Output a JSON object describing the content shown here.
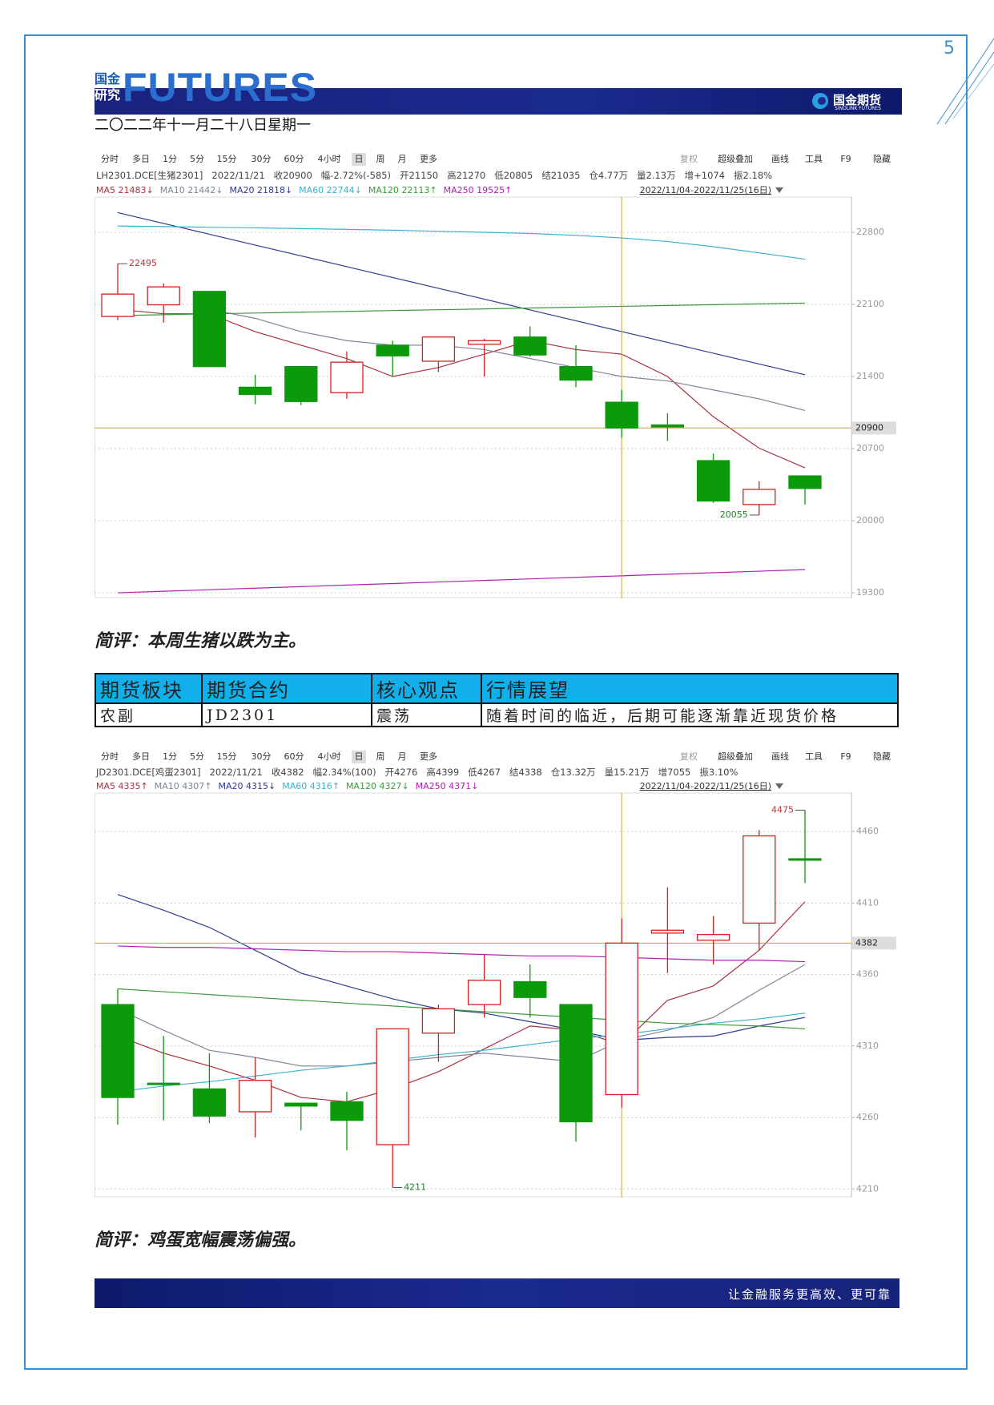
{
  "header": {
    "logo_top": "国金",
    "logo_bottom": "研究",
    "logo_word": "FUTURES",
    "brand": "国金期货",
    "brand_en": "SINOLINK FUTURES",
    "date": "二〇二二年十一月二十八日星期一",
    "page_number": 5
  },
  "comments": [
    "简评：本周生猪以跌为主。",
    "简评：鸡蛋宽幅震荡偏强。"
  ],
  "table": {
    "header": [
      "期货板块",
      "期货合约",
      "核心观点",
      "行情展望"
    ],
    "rows": [
      [
        "农副",
        "JD2301",
        "震荡",
        "随着时间的临近，后期可能逐渐靠近现货价格"
      ]
    ]
  },
  "footer": {
    "slogan": "让金融服务更高效、更可靠"
  },
  "chart_data": [
    {
      "type": "candlestick",
      "toolbar": [
        "分时",
        "多日",
        "1分",
        "5分",
        "15分",
        "30分",
        "60分",
        "4小时",
        "日",
        "周",
        "月",
        "更多"
      ],
      "toolbar_right": [
        "复权",
        "超级叠加",
        "画线",
        "工具",
        "F9",
        "隐藏"
      ],
      "info": [
        "LH2301.DCE[生猪2301]",
        "2022/11/21",
        "收20900",
        "幅-2.72%(-585)",
        "开21150",
        "高21270",
        "低20805",
        "结21035",
        "仓4.77万",
        "量2.13万",
        "增+1074",
        "振2.18%"
      ],
      "ma_legend": [
        "MA5 21483↓",
        "MA10 21442↓",
        "MA20 21818↓",
        "MA60 22744↓",
        "MA120 22113↑",
        "MA250 19525↑"
      ],
      "range": "2022/11/04-2022/11/25(16日)",
      "ylim": [
        19246,
        23142
      ],
      "yticks": [
        22800,
        22100,
        21400,
        20700,
        20000,
        19300
      ],
      "grid": true,
      "last_price": 20900,
      "high_label": 22495,
      "low_label": 20055,
      "up_color": "#d42020",
      "down_color": "#0a9a0a",
      "open": [
        21983,
        22096,
        22226,
        21296,
        21496,
        21243,
        21704,
        21548,
        21713,
        21783,
        21496,
        21150,
        20930,
        20583,
        20157,
        20435
      ],
      "high": [
        22495,
        22304,
        22226,
        21417,
        21496,
        21643,
        21748,
        21783,
        21765,
        21887,
        21704,
        21270,
        21043,
        20652,
        20383,
        20435
      ],
      "low": [
        21948,
        21922,
        21496,
        21130,
        21122,
        21183,
        21400,
        21443,
        21400,
        21591,
        21296,
        20805,
        20774,
        20174,
        20055,
        20157
      ],
      "close": [
        22200,
        22270,
        21496,
        21226,
        21157,
        21539,
        21600,
        21783,
        21748,
        21609,
        21365,
        20900,
        20910,
        20191,
        20304,
        20313
      ],
      "lines": [
        {
          "color": "#a8323e",
          "values": [
            22052,
            22009,
            22009,
            21835,
            21704,
            21574,
            21400,
            21487,
            21617,
            21748,
            21661,
            21617,
            21400,
            21009,
            20704,
            20513
          ]
        },
        {
          "color": "#7a8595",
          "values": [
            null,
            null,
            22052,
            21965,
            21835,
            21748,
            21704,
            21704,
            21661,
            21574,
            21487,
            21400,
            21357,
            21270,
            21183,
            21070
          ]
        },
        {
          "color": "#2d3b8c",
          "values": [
            22991,
            22886,
            22781,
            22676,
            22571,
            22466,
            22361,
            22256,
            22151,
            22046,
            21941,
            21836,
            21731,
            21626,
            21521,
            21417
          ]
        },
        {
          "color": "#3ab0d0",
          "values": [
            22861,
            22855,
            22849,
            22843,
            22836,
            22828,
            22820,
            22810,
            22800,
            22788,
            22770,
            22745,
            22710,
            22660,
            22600,
            22539
          ]
        },
        {
          "color": "#3a9a3a",
          "values": [
            21991,
            22000,
            22008,
            22016,
            22024,
            22032,
            22040,
            22048,
            22056,
            22065,
            22073,
            22081,
            22089,
            22097,
            22105,
            22113
          ]
        },
        {
          "color": "#b020b0",
          "values": [
            19300,
            19315,
            19330,
            19345,
            19360,
            19375,
            19390,
            19405,
            19420,
            19435,
            19450,
            19465,
            19480,
            19495,
            19510,
            19525
          ]
        }
      ]
    },
    {
      "type": "candlestick",
      "toolbar": [
        "分时",
        "多日",
        "1分",
        "5分",
        "15分",
        "30分",
        "60分",
        "4小时",
        "日",
        "周",
        "月",
        "更多"
      ],
      "toolbar_right": [
        "复权",
        "超级叠加",
        "画线",
        "工具",
        "F9",
        "隐藏"
      ],
      "info": [
        "JD2301.DCE[鸡蛋2301]",
        "2022/11/21",
        "收4382",
        "幅2.34%(100)",
        "开4276",
        "高4399",
        "低4267",
        "结4338",
        "仓13.32万",
        "量15.21万",
        "增7055",
        "振3.10%"
      ],
      "ma_legend": [
        "MA5 4335↑",
        "MA10 4307↑",
        "MA20 4315↓",
        "MA60 4316↑",
        "MA120 4327↓",
        "MA250 4371↓"
      ],
      "range": "2022/11/04-2022/11/25(16日)",
      "ylim": [
        4204,
        4487
      ],
      "yticks": [
        4460,
        4410,
        4360,
        4310,
        4260,
        4210
      ],
      "grid": true,
      "last_price": 4382,
      "high_label": 4475,
      "low_label": 4211,
      "up_color": "#d42020",
      "down_color": "#0a9a0a",
      "open": [
        4339,
        4284,
        4280,
        4264,
        4270,
        4271,
        4241,
        4319,
        4339,
        4355,
        4339,
        4276,
        4389,
        4384,
        4396,
        4441
      ],
      "high": [
        4350,
        4317,
        4305,
        4302,
        4270,
        4278,
        4322,
        4339,
        4374,
        4367,
        4339,
        4399,
        4421,
        4401,
        4461,
        4475
      ],
      "low": [
        4255,
        4258,
        4256,
        4246,
        4251,
        4237,
        4211,
        4299,
        4330,
        4330,
        4243,
        4267,
        4361,
        4367,
        4377,
        4424
      ],
      "close": [
        4274,
        4283,
        4261,
        4286,
        4268,
        4258,
        4322,
        4336,
        4356,
        4344,
        4257,
        4382,
        4391,
        4388,
        4457,
        4440
      ],
      "lines": [
        {
          "color": "#a8323e",
          "values": [
            4317,
            4305,
            4296,
            4286,
            4274,
            4271,
            4280,
            4292,
            4308,
            4324,
            4321,
            4311,
            4342,
            4352,
            4377,
            4411
          ]
        },
        {
          "color": "#7a8595",
          "values": [
            4336,
            4321,
            4307,
            4302,
            4296,
            4296,
            4299,
            4302,
            4305,
            4302,
            4299,
            4314,
            4321,
            4330,
            4349,
            4367
          ]
        },
        {
          "color": "#2d3b8c",
          "values": [
            4416,
            4405,
            4393,
            4377,
            4361,
            4352,
            4343,
            4336,
            4333,
            4327,
            4321,
            4314,
            4316,
            4317,
            4324,
            4330
          ]
        },
        {
          "color": "#3ab0d0",
          "values": [
            4278,
            4282,
            4285,
            4289,
            4293,
            4296,
            4300,
            4304,
            4307,
            4311,
            4315,
            4318,
            4322,
            4326,
            4329,
            4333
          ]
        },
        {
          "color": "#3a9a3a",
          "values": [
            4350,
            4348,
            4346,
            4344,
            4342,
            4340,
            4338,
            4336,
            4334,
            4332,
            4330,
            4328,
            4326,
            4325,
            4324,
            4322
          ]
        },
        {
          "color": "#b020b0",
          "values": [
            4380,
            4379,
            4379,
            4378,
            4377,
            4376,
            4376,
            4375,
            4374,
            4373,
            4373,
            4372,
            4371,
            4370,
            4370,
            4369
          ]
        }
      ]
    }
  ]
}
